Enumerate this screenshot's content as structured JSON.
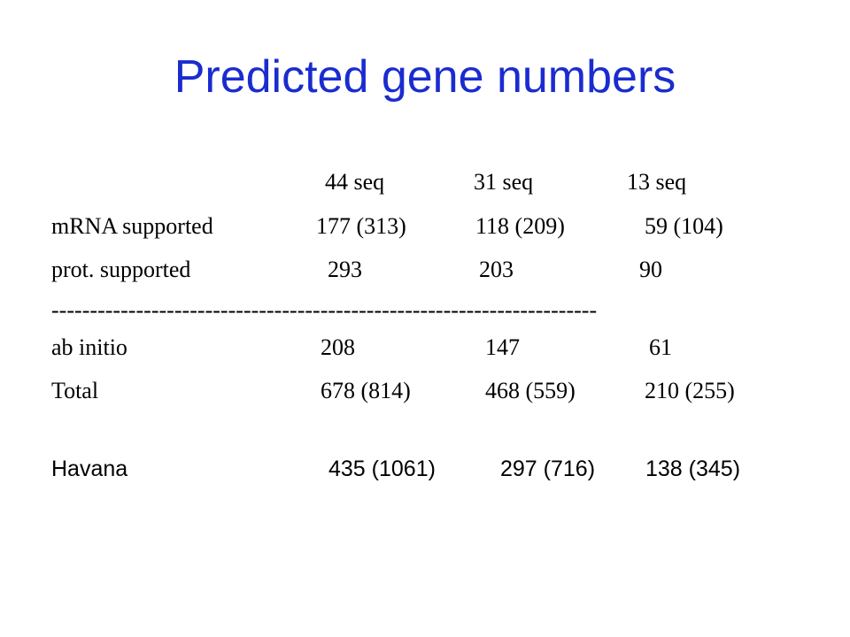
{
  "slide": {
    "title": "Predicted gene numbers",
    "columns": [
      "44 seq",
      "31 seq",
      "13 seq"
    ],
    "rows": [
      {
        "label": "mRNA  supported",
        "values": [
          "177 (313)",
          "118 (209)",
          "59 (104)"
        ]
      },
      {
        "label": "prot. supported",
        "values": [
          "293",
          "203",
          "90"
        ]
      },
      {
        "label": "ab initio",
        "values": [
          "208",
          "147",
          "61"
        ]
      },
      {
        "label": "Total",
        "values": [
          "678 (814)",
          "468 (559)",
          "210 (255)"
        ]
      }
    ],
    "divider": "-----------------------------------------------------------------------",
    "havana": {
      "label": "Havana",
      "values": [
        "435 (1061)",
        "297 (716)",
        "138 (345)"
      ]
    }
  }
}
